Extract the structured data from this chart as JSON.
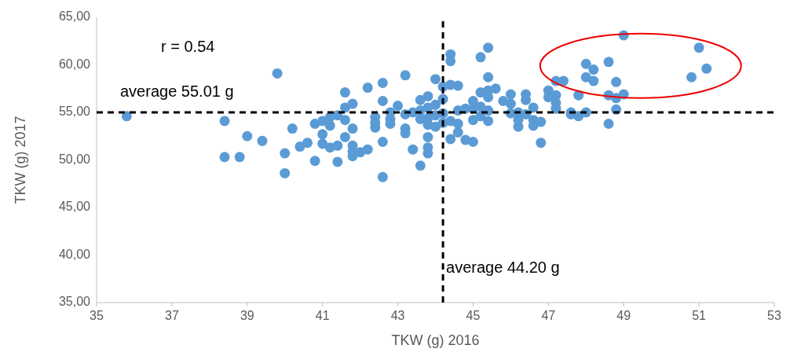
{
  "chart_data": {
    "type": "scatter",
    "xlabel": "TKW (g) 2016",
    "ylabel": "TKW (g) 2017",
    "xlim": [
      35,
      53
    ],
    "xticks": [
      35,
      37,
      39,
      41,
      43,
      45,
      47,
      49,
      51,
      53
    ],
    "ylim": [
      35,
      65
    ],
    "yticks": [
      {
        "value": 35,
        "label": "35,00"
      },
      {
        "value": 40,
        "label": "40,00"
      },
      {
        "value": 45,
        "label": "45,00"
      },
      {
        "value": 50,
        "label": "50,00"
      },
      {
        "value": 55,
        "label": "55,00"
      },
      {
        "value": 60,
        "label": "60,00"
      },
      {
        "value": 65,
        "label": "65,00"
      }
    ],
    "grid": false,
    "legend": false,
    "marker": "circle",
    "annotations": [
      "r = 0.54"
    ],
    "ref_lines": [
      {
        "axis": "y",
        "value": 55.01,
        "label": "average 55.01 g",
        "color": "#000000",
        "line_style": "dashed"
      },
      {
        "axis": "x",
        "value": 44.2,
        "label": "average 44.20 g",
        "color": "#000000",
        "line_style": "dashed"
      }
    ],
    "series": [
      {
        "color": "#5b9bd5",
        "x": [
          35.8,
          38.4,
          38.4,
          38.8,
          39.0,
          39.4,
          39.8,
          40.0,
          40.0,
          40.2,
          40.4,
          40.6,
          40.8,
          40.8,
          41.0,
          41.0,
          41.0,
          41.2,
          41.2,
          41.2,
          41.4,
          41.4,
          41.4,
          41.6,
          41.6,
          41.6,
          41.6,
          41.8,
          41.8,
          41.8,
          41.8,
          41.8,
          42.0,
          42.2,
          42.2,
          42.4,
          42.4,
          42.4,
          42.6,
          42.6,
          42.6,
          42.6,
          42.8,
          42.8,
          42.8,
          43.0,
          43.2,
          43.2,
          43.2,
          43.2,
          43.4,
          43.4,
          43.6,
          43.6,
          43.6,
          43.6,
          43.8,
          43.8,
          43.8,
          43.8,
          43.8,
          43.8,
          43.8,
          44.0,
          44.0,
          44.0,
          44.0,
          44.2,
          44.2,
          44.2,
          44.2,
          44.4,
          44.4,
          44.4,
          44.4,
          44.4,
          44.6,
          44.6,
          44.6,
          44.6,
          44.8,
          44.8,
          45.0,
          45.0,
          45.0,
          45.0,
          45.2,
          45.2,
          45.2,
          45.2,
          45.4,
          45.4,
          45.4,
          45.4,
          45.4,
          45.4,
          45.6,
          45.8,
          46.0,
          46.0,
          46.0,
          46.2,
          46.2,
          46.2,
          46.4,
          46.4,
          46.4,
          46.6,
          46.6,
          46.6,
          46.8,
          46.8,
          47.0,
          47.0,
          47.2,
          47.2,
          47.2,
          47.2,
          47.4,
          47.6,
          47.6,
          47.8,
          47.8,
          48.0,
          48.0,
          48.0,
          48.2,
          48.2,
          48.6,
          48.6,
          48.6,
          48.8,
          48.8,
          48.8,
          49.0,
          49.0,
          50.8,
          51.0,
          51.2
        ],
        "values": [
          54.6,
          54.1,
          50.3,
          50.3,
          52.5,
          52.0,
          59.1,
          50.7,
          48.6,
          53.3,
          51.4,
          51.8,
          53.8,
          49.9,
          54.1,
          52.7,
          51.7,
          54.5,
          53.6,
          51.3,
          54.7,
          51.5,
          49.8,
          57.1,
          55.5,
          54.2,
          52.4,
          55.9,
          53.3,
          51.5,
          50.9,
          50.4,
          50.8,
          57.6,
          51.1,
          54.5,
          53.9,
          53.4,
          58.1,
          56.2,
          51.9,
          48.2,
          55.0,
          54.3,
          53.8,
          55.7,
          58.9,
          54.8,
          53.3,
          52.8,
          55.0,
          51.1,
          56.3,
          55.2,
          54.3,
          49.4,
          56.7,
          55.5,
          54.4,
          53.7,
          52.4,
          51.3,
          50.7,
          58.5,
          55.8,
          54.7,
          53.5,
          57.7,
          56.4,
          54.9,
          53.9,
          61.1,
          60.4,
          57.9,
          54.1,
          52.2,
          57.8,
          55.2,
          53.8,
          52.9,
          55.4,
          52.1,
          56.2,
          55.4,
          54.2,
          51.9,
          60.8,
          57.1,
          55.6,
          54.6,
          61.8,
          58.7,
          57.3,
          56.6,
          55.2,
          54.1,
          57.5,
          56.2,
          56.9,
          55.9,
          54.9,
          55.0,
          54.2,
          53.5,
          56.9,
          56.3,
          54.8,
          55.5,
          54.2,
          53.6,
          54.0,
          51.8,
          57.3,
          56.6,
          58.3,
          56.8,
          56.0,
          55.4,
          58.3,
          55.0,
          54.8,
          56.8,
          54.6,
          60.1,
          58.7,
          55.0,
          59.5,
          58.3,
          60.3,
          56.8,
          53.8,
          58.2,
          56.5,
          55.3,
          63.1,
          56.9,
          58.7,
          61.8,
          59.6
        ]
      }
    ]
  }
}
